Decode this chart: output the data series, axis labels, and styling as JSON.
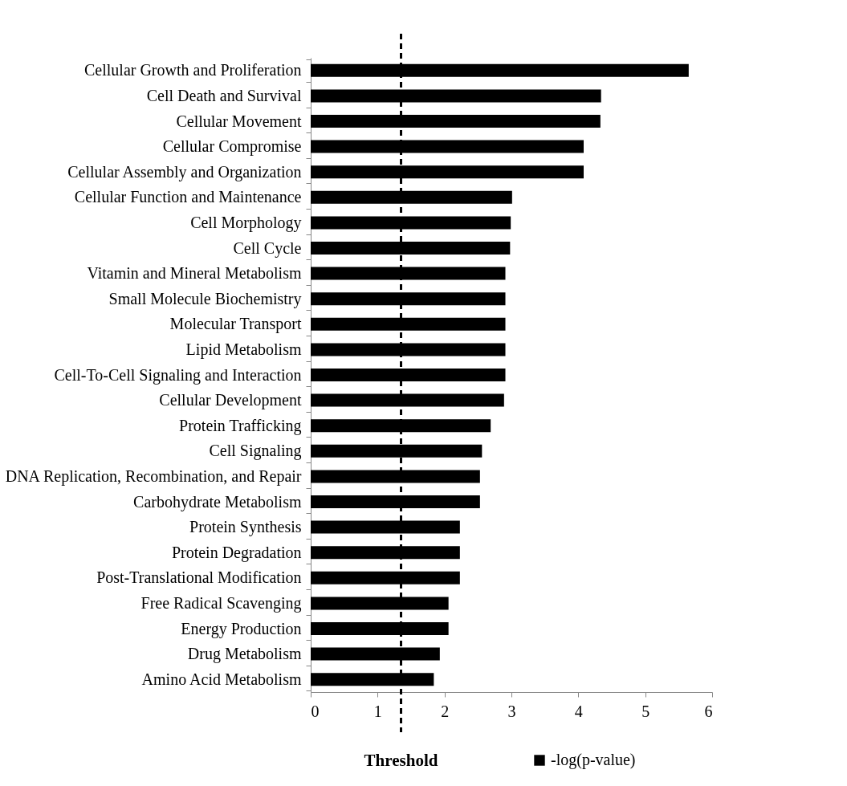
{
  "chart_data": {
    "type": "bar",
    "orientation": "horizontal",
    "categories": [
      "Cellular Growth and Proliferation",
      "Cell Death and Survival",
      "Cellular Movement",
      "Cellular Compromise",
      "Cellular Assembly and Organization",
      "Cellular Function and Maintenance",
      "Cell Morphology",
      "Cell Cycle",
      "Vitamin and Mineral Metabolism",
      "Small Molecule Biochemistry",
      "Molecular Transport",
      "Lipid Metabolism",
      "Cell-To-Cell Signaling and Interaction",
      "Cellular Development",
      "Protein Trafficking",
      "Cell Signaling",
      "DNA Replication, Recombination, and Repair",
      "Carbohydrate Metabolism",
      "Protein Synthesis",
      "Protein Degradation",
      "Post-Translational Modification",
      "Free Radical Scavenging",
      "Energy Production",
      "Drug Metabolism",
      "Amino Acid Metabolism"
    ],
    "series": [
      {
        "name": "-log(p-value)",
        "color": "#000000",
        "values": [
          5.65,
          4.34,
          4.33,
          4.08,
          4.08,
          3.01,
          2.99,
          2.98,
          2.91,
          2.91,
          2.91,
          2.91,
          2.91,
          2.89,
          2.69,
          2.56,
          2.53,
          2.53,
          2.23,
          2.23,
          2.23,
          2.06,
          2.06,
          1.93,
          1.84
        ]
      }
    ],
    "xlim": [
      0,
      6
    ],
    "xticks": [
      0,
      1,
      2,
      3,
      4,
      5,
      6
    ],
    "ref_lines": [
      {
        "axis": "x",
        "value": 1.35,
        "label": "Threshold",
        "color": "#000000",
        "line_style": "dashed"
      }
    ],
    "grid": false,
    "legend": "bottom right"
  }
}
